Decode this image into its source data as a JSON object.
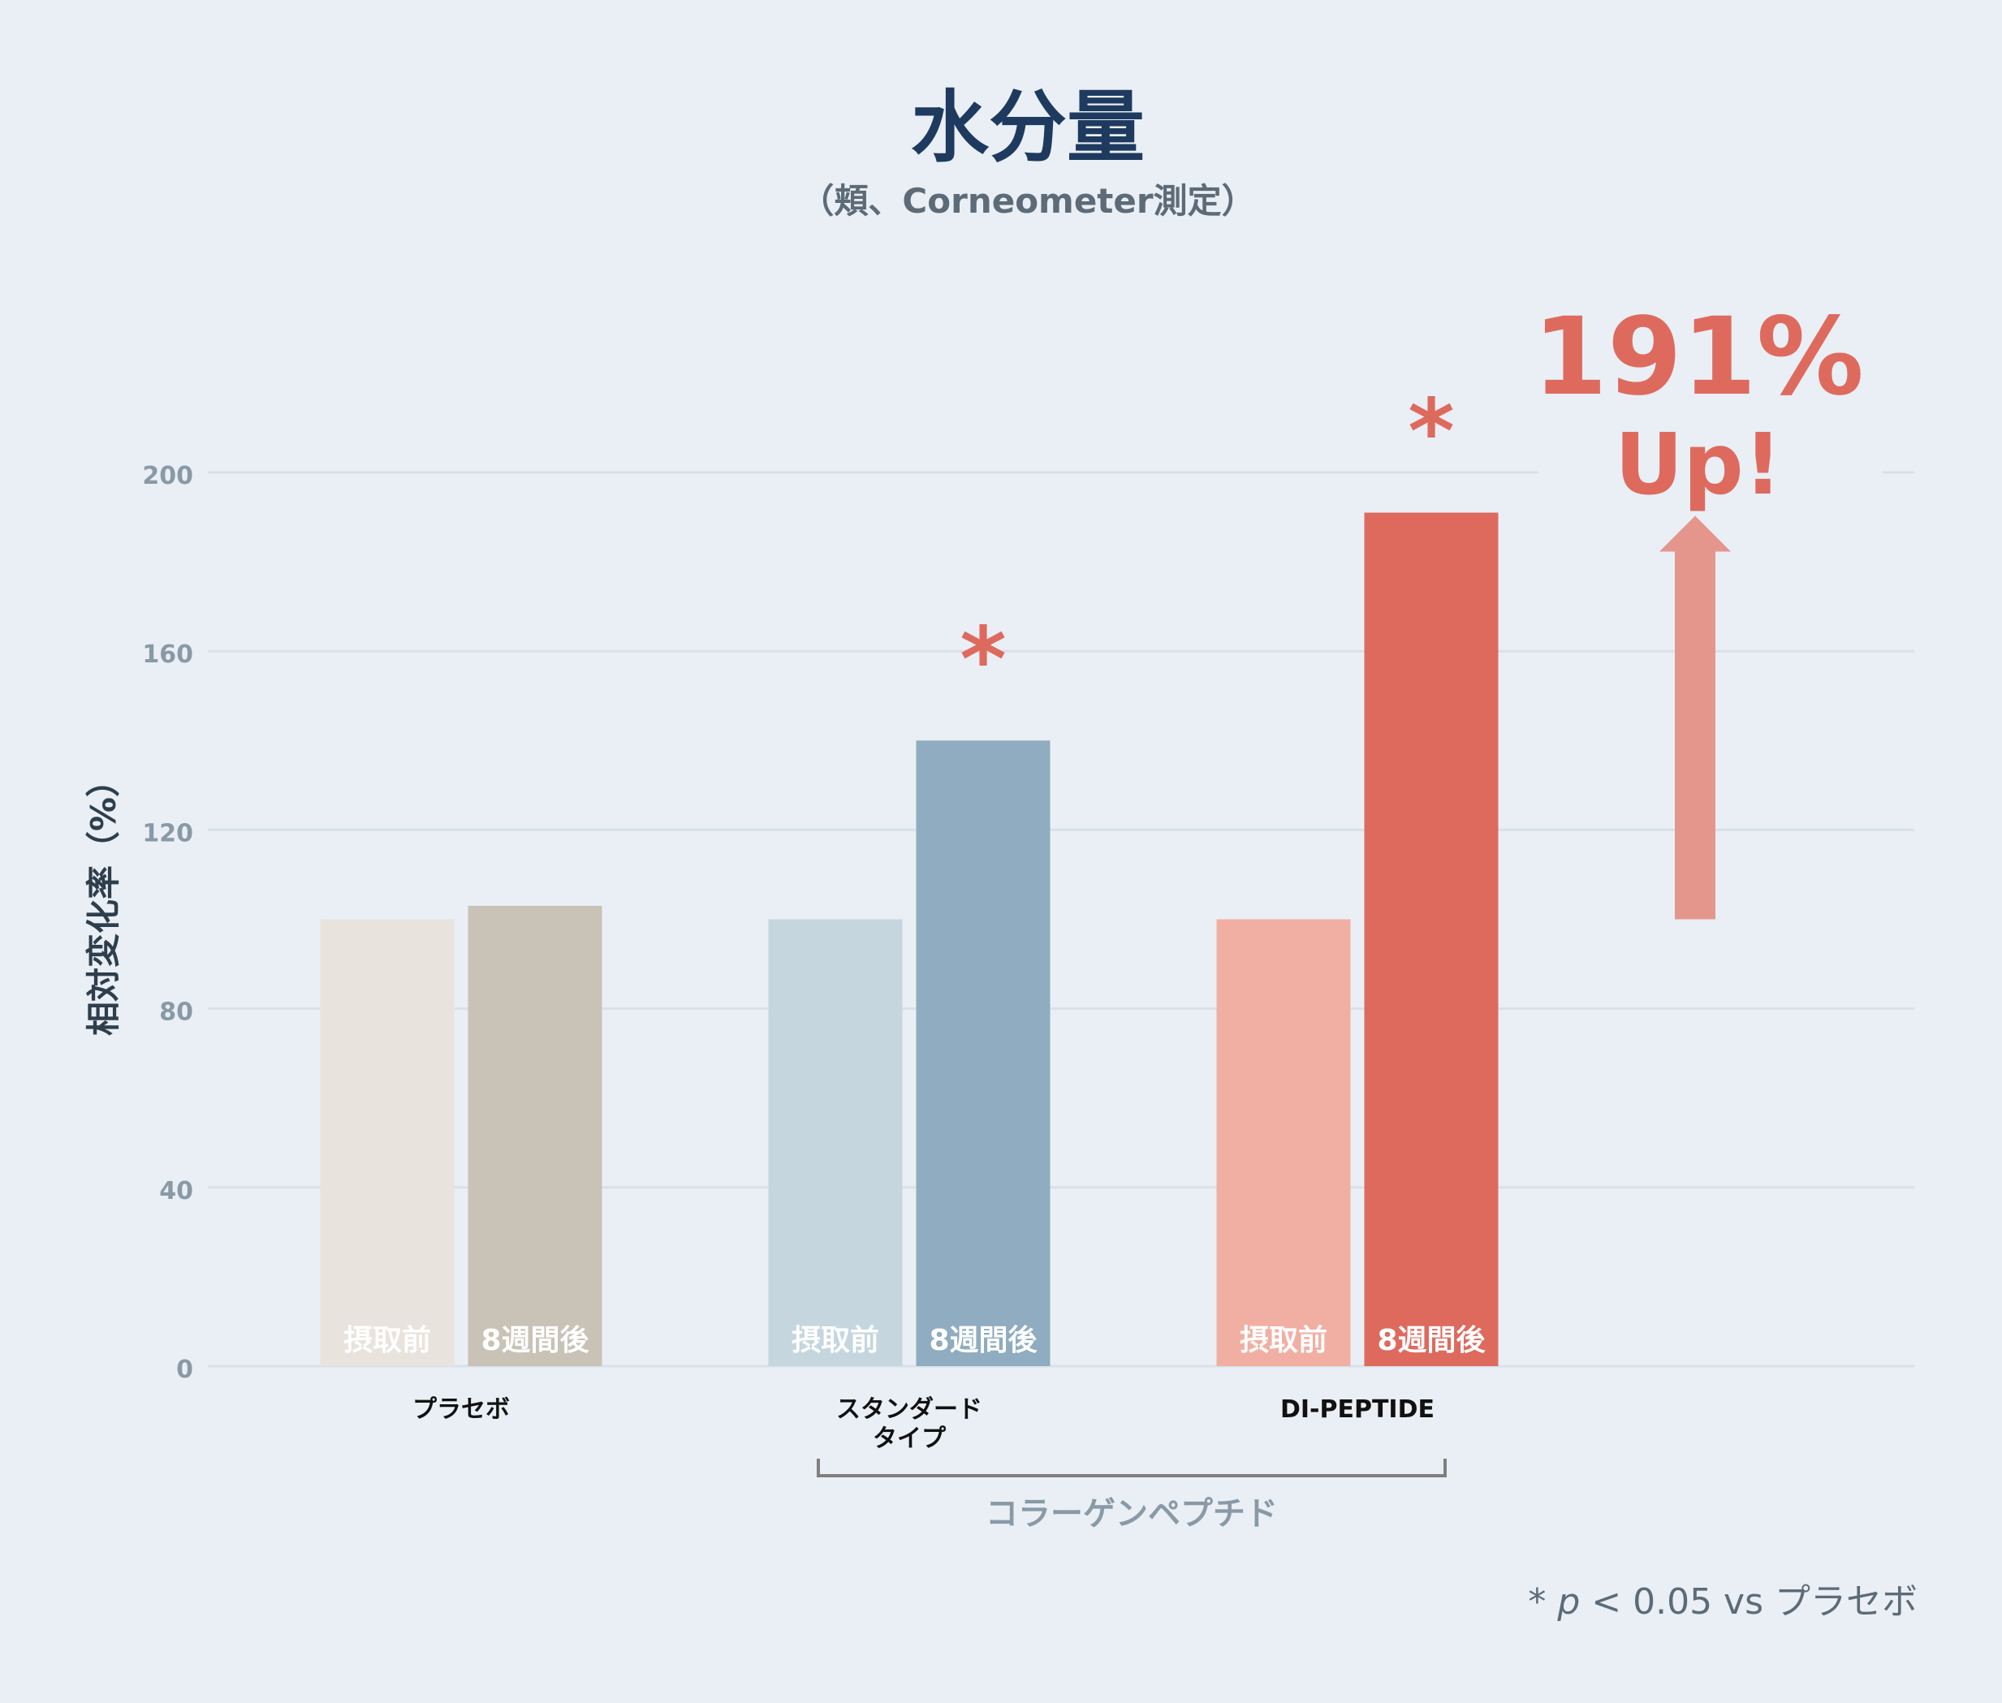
{
  "chart_data": {
    "type": "bar",
    "title": "水分量",
    "subtitle": "（頬、Corneometer測定）",
    "ylabel": "相対変化率（%）",
    "ylim": [
      0,
      200
    ],
    "yticks": [
      0,
      40,
      80,
      120,
      160,
      200
    ],
    "grid": true,
    "categories": [
      "プラセボ",
      "スタンダード\nタイプ",
      "DI-PEPTIDE"
    ],
    "bar_labels": [
      "摂取前",
      "8週間後"
    ],
    "groups": [
      {
        "values": [
          100,
          103
        ],
        "colors": [
          "#e8e3dc",
          "#c9c2b6"
        ],
        "significant": false
      },
      {
        "values": [
          100,
          140
        ],
        "colors": [
          "#c5d6de",
          "#8facc0"
        ],
        "significant": true
      },
      {
        "values": [
          100,
          191
        ],
        "colors": [
          "#f1afa3",
          "#de6a5e"
        ],
        "significant": true
      }
    ],
    "significance_mark": "*",
    "bracket_label": "コラーゲンペプチド",
    "callout": {
      "value_text": "191%",
      "text": "Up!",
      "from": 100,
      "to": 191
    },
    "footnote": "* p < 0.05 vs プラセボ",
    "colors": {
      "title": "#1f3a5f",
      "accent": "#de6a5e",
      "arrow": "#e5968c",
      "grid": "#d8e1ea"
    }
  }
}
